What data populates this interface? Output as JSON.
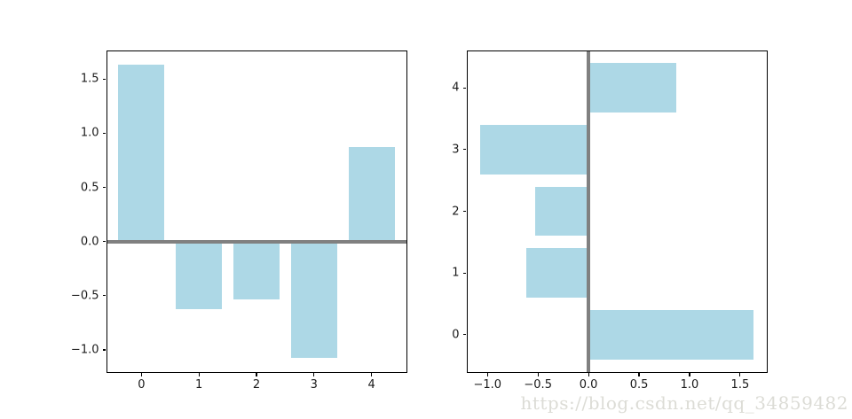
{
  "figure": {
    "background": "#ffffff",
    "watermark": {
      "text": "https://blog.csdn.net/qq_34859482",
      "color": "#dcdcd6"
    }
  },
  "chart_data": [
    {
      "type": "bar",
      "orientation": "vertical",
      "title": "",
      "xlabel": "",
      "ylabel": "",
      "categories": [
        "0",
        "1",
        "2",
        "3",
        "4"
      ],
      "values": [
        1.63,
        -0.62,
        -0.53,
        -1.07,
        0.87
      ],
      "bar_color": "#add8e6",
      "bar_size": 0.8,
      "zero_line": {
        "value": 0,
        "color": "#808080",
        "thickness": 4
      },
      "grid": false,
      "xlim": [
        -0.6,
        4.6
      ],
      "ylim": [
        -1.2,
        1.76
      ],
      "x_ticks": [
        {
          "value": 0,
          "label": "0"
        },
        {
          "value": 1,
          "label": "1"
        },
        {
          "value": 2,
          "label": "2"
        },
        {
          "value": 3,
          "label": "3"
        },
        {
          "value": 4,
          "label": "4"
        }
      ],
      "y_ticks": [
        {
          "value": -1.0,
          "label": "−1.0"
        },
        {
          "value": -0.5,
          "label": "−0.5"
        },
        {
          "value": 0.0,
          "label": "0.0"
        },
        {
          "value": 0.5,
          "label": "0.5"
        },
        {
          "value": 1.0,
          "label": "1.0"
        },
        {
          "value": 1.5,
          "label": "1.5"
        }
      ]
    },
    {
      "type": "bar",
      "orientation": "horizontal",
      "title": "",
      "xlabel": "",
      "ylabel": "",
      "categories": [
        "0",
        "1",
        "2",
        "3",
        "4"
      ],
      "values": [
        1.63,
        -0.62,
        -0.53,
        -1.07,
        0.87
      ],
      "bar_color": "#add8e6",
      "bar_size": 0.8,
      "zero_line": {
        "value": 0,
        "color": "#808080",
        "thickness": 4
      },
      "grid": false,
      "xlim": [
        -1.2,
        1.76
      ],
      "ylim": [
        -0.6,
        4.6
      ],
      "x_ticks": [
        {
          "value": -1.0,
          "label": "−1.0"
        },
        {
          "value": -0.5,
          "label": "−0.5"
        },
        {
          "value": 0.0,
          "label": "0.0"
        },
        {
          "value": 0.5,
          "label": "0.5"
        },
        {
          "value": 1.0,
          "label": "1.0"
        },
        {
          "value": 1.5,
          "label": "1.5"
        }
      ],
      "y_ticks": [
        {
          "value": 0,
          "label": "0"
        },
        {
          "value": 1,
          "label": "1"
        },
        {
          "value": 2,
          "label": "2"
        },
        {
          "value": 3,
          "label": "3"
        },
        {
          "value": 4,
          "label": "4"
        }
      ]
    }
  ]
}
